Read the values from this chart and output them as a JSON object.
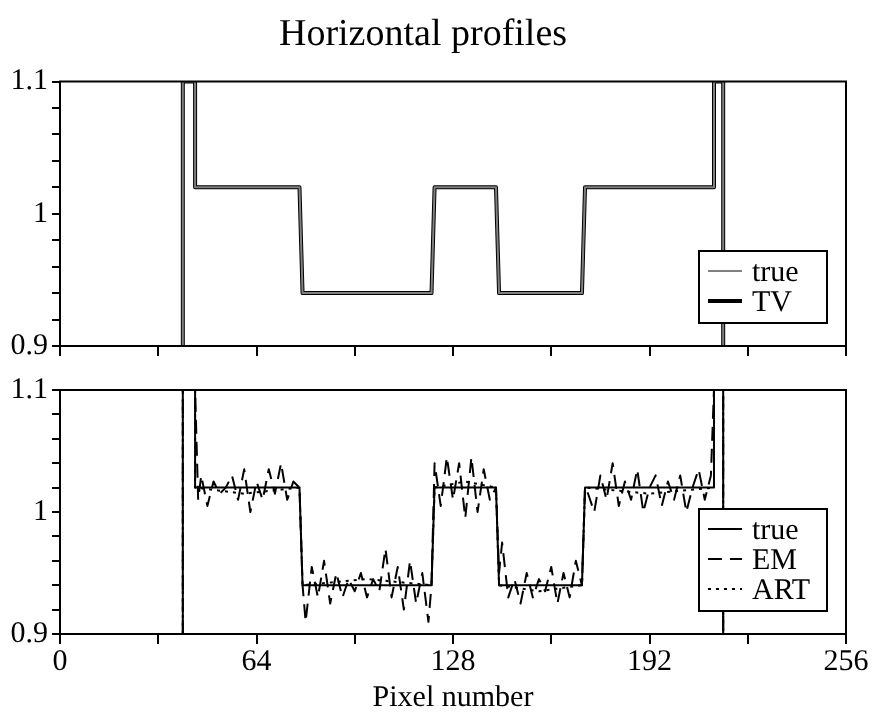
{
  "chart_data": [
    {
      "type": "line",
      "title": "Horizontal profiles",
      "xlim": [
        0,
        256
      ],
      "ylim": [
        0.9,
        1.1
      ],
      "xticks": [
        0,
        {
          "value": 32,
          "label": null
        },
        64,
        {
          "value": 96,
          "label": null
        },
        128,
        {
          "value": 160,
          "label": null
        },
        192,
        {
          "value": 224,
          "label": null
        },
        256
      ],
      "yticks": [
        0.9,
        {
          "value": 0.92,
          "label": null
        },
        {
          "value": 0.94,
          "label": null
        },
        {
          "value": 0.96,
          "label": null
        },
        {
          "value": 0.98,
          "label": null
        },
        1,
        {
          "value": 1.02,
          "label": null
        },
        {
          "value": 1.04,
          "label": null
        },
        {
          "value": 1.06,
          "label": null
        },
        {
          "value": 1.08,
          "label": null
        },
        1.1
      ],
      "tick_labels": "y",
      "grid": false,
      "legend": "bottom right",
      "marker": "none",
      "series": [
        {
          "name": "true",
          "color": "#808080",
          "line_style": "solid",
          "x": [
            40,
            40,
            44,
            44,
            78,
            79,
            121,
            122,
            142,
            143,
            170,
            171,
            213,
            213,
            216,
            216
          ],
          "values": [
            0.9,
            1.1,
            1.1,
            1.02,
            1.02,
            0.94,
            0.94,
            1.02,
            1.02,
            0.94,
            0.94,
            1.02,
            1.02,
            1.1,
            1.1,
            0.9
          ]
        },
        {
          "name": "TV",
          "color": "#000000",
          "line_style": "solid",
          "x": [
            40,
            40,
            44,
            44,
            78,
            79,
            121,
            122,
            142,
            143,
            170,
            171,
            213,
            213,
            216,
            216
          ],
          "values": [
            0.9,
            1.1,
            1.1,
            1.02,
            1.02,
            0.94,
            0.94,
            1.02,
            1.02,
            0.94,
            0.94,
            1.02,
            1.02,
            1.1,
            1.1,
            0.9
          ]
        }
      ]
    },
    {
      "type": "line",
      "xlabel": "Pixel number",
      "xlim": [
        0,
        256
      ],
      "ylim": [
        0.9,
        1.1
      ],
      "xticks": [
        0,
        {
          "value": 32,
          "label": null
        },
        64,
        {
          "value": 96,
          "label": null
        },
        128,
        {
          "value": 160,
          "label": null
        },
        192,
        {
          "value": 224,
          "label": null
        },
        256
      ],
      "yticks": [
        0.9,
        {
          "value": 0.92,
          "label": null
        },
        {
          "value": 0.94,
          "label": null
        },
        {
          "value": 0.96,
          "label": null
        },
        {
          "value": 0.98,
          "label": null
        },
        1,
        {
          "value": 1.02,
          "label": null
        },
        {
          "value": 1.04,
          "label": null
        },
        {
          "value": 1.06,
          "label": null
        },
        {
          "value": 1.08,
          "label": null
        },
        1.1
      ],
      "grid": false,
      "legend": "bottom right",
      "marker": "none",
      "series": [
        {
          "name": "true",
          "color": "#000000",
          "line_style": "solid",
          "x": [
            40,
            40,
            44,
            44,
            78,
            79,
            121,
            122,
            142,
            143,
            170,
            171,
            213,
            213,
            216,
            216
          ],
          "values": [
            0.9,
            1.1,
            1.1,
            1.02,
            1.02,
            0.94,
            0.94,
            1.02,
            1.02,
            0.94,
            0.94,
            1.02,
            1.02,
            1.1,
            1.1,
            0.9
          ]
        },
        {
          "name": "EM",
          "color": "#000000",
          "line_style": "dashed",
          "x": [
            40,
            40,
            44,
            45,
            46,
            48,
            50,
            52,
            54,
            56,
            58,
            60,
            62,
            64,
            66,
            68,
            70,
            72,
            74,
            76,
            78,
            79,
            80,
            82,
            84,
            86,
            88,
            90,
            92,
            94,
            96,
            98,
            100,
            102,
            104,
            106,
            108,
            110,
            112,
            114,
            116,
            118,
            120,
            121,
            122,
            124,
            126,
            128,
            130,
            132,
            134,
            136,
            138,
            140,
            142,
            143,
            144,
            146,
            148,
            150,
            152,
            154,
            156,
            158,
            160,
            162,
            164,
            166,
            168,
            170,
            171,
            172,
            174,
            176,
            178,
            180,
            182,
            184,
            186,
            188,
            190,
            192,
            194,
            196,
            198,
            200,
            202,
            204,
            206,
            208,
            210,
            212,
            213,
            216,
            216
          ],
          "values": [
            0.9,
            1.1,
            1.1,
            1.01,
            1.03,
            1.005,
            1.025,
            1.015,
            1.02,
            1.03,
            1.01,
            1.035,
            1.0,
            1.025,
            1.01,
            1.035,
            1.015,
            1.04,
            1.01,
            1.025,
            1.02,
            0.94,
            0.91,
            0.955,
            0.93,
            0.96,
            0.925,
            0.95,
            0.93,
            0.945,
            0.935,
            0.95,
            0.93,
            0.945,
            0.935,
            0.97,
            0.93,
            0.955,
            0.92,
            0.96,
            0.925,
            0.95,
            0.91,
            0.94,
            1.04,
            1.005,
            1.045,
            1.01,
            1.04,
            0.995,
            1.045,
            1.0,
            1.035,
            1.01,
            1.02,
            0.95,
            0.975,
            0.93,
            0.945,
            0.925,
            0.95,
            0.93,
            0.945,
            0.935,
            0.955,
            0.925,
            0.95,
            0.93,
            0.96,
            0.94,
            1.02,
            1.015,
            1.0,
            1.03,
            1.01,
            1.04,
            1.005,
            1.025,
            1.01,
            1.035,
            1.0,
            1.02,
            1.03,
            1.005,
            1.025,
            1.01,
            1.03,
            1.0,
            1.02,
            1.035,
            1.01,
            1.03,
            1.1,
            1.1,
            0.9
          ]
        },
        {
          "name": "ART",
          "color": "#000000",
          "line_style": "dotted",
          "x": [
            40,
            40,
            44,
            44,
            60,
            78,
            79,
            100,
            121,
            122,
            132,
            142,
            143,
            156,
            170,
            171,
            192,
            213,
            213,
            216,
            216
          ],
          "values": [
            0.9,
            1.1,
            1.1,
            1.02,
            1.015,
            1.02,
            0.94,
            0.945,
            0.94,
            1.02,
            1.025,
            1.02,
            0.94,
            0.935,
            0.94,
            1.02,
            1.015,
            1.02,
            1.1,
            1.1,
            0.9
          ]
        }
      ]
    }
  ]
}
